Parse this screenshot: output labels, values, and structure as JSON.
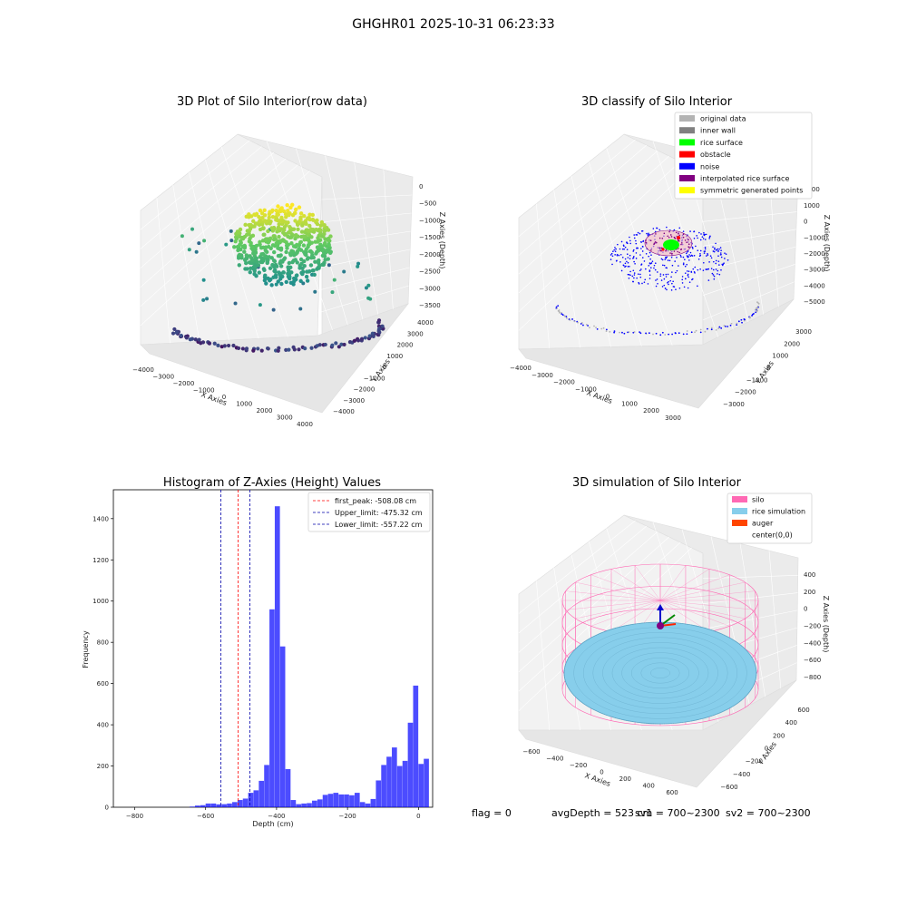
{
  "figure": {
    "suptitle": "GHGHR01 2025-10-31 06:23:33",
    "status": {
      "flag": "flag = 0",
      "avg_depth": "avgDepth = 523 cm",
      "sv1": "sv1 = 700~2300",
      "sv2": "sv2 = 700~2300"
    }
  },
  "chart_data": [
    {
      "type": "scatter",
      "title": "3D Plot of Silo Interior(row data)",
      "xlabel": "X Axies",
      "ylabel": "Y Axies",
      "zlabel": "Z Axies (Depth)",
      "x_ticks": [
        "−4000",
        "−3000",
        "−2000",
        "−1000",
        "0",
        "1000",
        "2000",
        "3000",
        "4000"
      ],
      "y_ticks": [
        "−4000",
        "−3000",
        "−2000",
        "−1000",
        "0",
        "1000",
        "2000",
        "3000",
        "4000"
      ],
      "z_ticks": [
        "0",
        "−500",
        "−1000",
        "−1500",
        "−2000",
        "−2500",
        "−3000",
        "−3500"
      ],
      "colormap": "viridis",
      "description_values": {
        "z_range": [
          -3700,
          0
        ],
        "xy_range": [
          -4000,
          4000
        ]
      }
    },
    {
      "type": "scatter",
      "title": "3D classify of Silo Interior",
      "xlabel": "X Axies",
      "ylabel": "Y Axies",
      "zlabel": "Z Axies (Depth)",
      "x_ticks": [
        "−4000",
        "−3000",
        "−2000",
        "−1000",
        "0",
        "1000",
        "2000",
        "3000"
      ],
      "y_ticks": [
        "−3000",
        "−2000",
        "−1000",
        "0",
        "1000",
        "2000",
        "3000"
      ],
      "z_ticks": [
        "1000",
        "0",
        "−1000",
        "−2000",
        "−3000",
        "−4000",
        "−5000"
      ],
      "z_hidden_tick": "2000",
      "legend": [
        {
          "name": "original data",
          "color": "#b3b3b3"
        },
        {
          "name": "inner wall",
          "color": "#808080"
        },
        {
          "name": "rice surface",
          "color": "#00ff00"
        },
        {
          "name": "obstacle",
          "color": "#ff0000"
        },
        {
          "name": "noise",
          "color": "#0000ff"
        },
        {
          "name": "interpolated rice surface",
          "color": "#800080"
        },
        {
          "name": "symmetric generated points",
          "color": "#ffff00"
        }
      ]
    },
    {
      "type": "bar",
      "title": "Histogram of Z-Axies (Height) Values",
      "xlabel": "Depth (cm)",
      "ylabel": "Frequency",
      "xlim": [
        -860,
        40
      ],
      "ylim": [
        0,
        1540
      ],
      "x_ticks": [
        -800,
        -600,
        -400,
        -200,
        0
      ],
      "y_ticks": [
        0,
        200,
        400,
        600,
        800,
        1000,
        1200,
        1400
      ],
      "bar_color": "#0000ff",
      "bin_width": 15,
      "bins": [
        {
          "x": -780,
          "value": 3
        },
        {
          "x": -765,
          "value": 8
        },
        {
          "x": -750,
          "value": 10
        },
        {
          "x": -735,
          "value": 18
        },
        {
          "x": -720,
          "value": 18
        },
        {
          "x": -705,
          "value": 14
        },
        {
          "x": -690,
          "value": 15
        },
        {
          "x": -675,
          "value": 18
        },
        {
          "x": -660,
          "value": 25
        },
        {
          "x": -645,
          "value": 35
        },
        {
          "x": -630,
          "value": 42
        },
        {
          "x": -615,
          "value": 70
        },
        {
          "x": -600,
          "value": 82
        },
        {
          "x": -585,
          "value": 128
        },
        {
          "x": -570,
          "value": 205
        },
        {
          "x": -555,
          "value": 960
        },
        {
          "x": -540,
          "value": 1460
        },
        {
          "x": -525,
          "value": 780
        },
        {
          "x": -510,
          "value": 185
        },
        {
          "x": -495,
          "value": 35
        },
        {
          "x": -480,
          "value": 15
        },
        {
          "x": -465,
          "value": 18
        },
        {
          "x": -450,
          "value": 20
        },
        {
          "x": -435,
          "value": 32
        },
        {
          "x": -420,
          "value": 38
        },
        {
          "x": -405,
          "value": 60
        },
        {
          "x": -390,
          "value": 65
        },
        {
          "x": -375,
          "value": 70
        },
        {
          "x": -360,
          "value": 62
        },
        {
          "x": -345,
          "value": 62
        },
        {
          "x": -330,
          "value": 58
        },
        {
          "x": -315,
          "value": 70
        },
        {
          "x": -300,
          "value": 25
        },
        {
          "x": -285,
          "value": 18
        },
        {
          "x": -270,
          "value": 40
        },
        {
          "x": -255,
          "value": 130
        },
        {
          "x": -240,
          "value": 205
        },
        {
          "x": -225,
          "value": 245
        },
        {
          "x": -210,
          "value": 290
        },
        {
          "x": -195,
          "value": 200
        },
        {
          "x": -180,
          "value": 225
        },
        {
          "x": -165,
          "value": 410
        },
        {
          "x": -150,
          "value": 590
        },
        {
          "x": -135,
          "value": 210
        },
        {
          "x": -120,
          "value": 235
        }
      ],
      "bin_offset": 135,
      "vlines": [
        {
          "label": "first_peak: -508.08 cm",
          "x": -508.08,
          "color": "#ff0000"
        },
        {
          "label": "Upper_limit: -475.32 cm",
          "x": -475.32,
          "color": "#0000aa"
        },
        {
          "label": "Lower_limit: -557.22 cm",
          "x": -557.22,
          "color": "#0000aa"
        }
      ],
      "legend_position": "top-right"
    },
    {
      "type": "scatter",
      "title": "3D simulation of Silo Interior",
      "xlabel": "X Axies",
      "ylabel": "Y Axies",
      "zlabel": "Z Axies (Depth)",
      "x_ticks": [
        "−600",
        "−400",
        "−200",
        "0",
        "200",
        "400",
        "600"
      ],
      "y_ticks": [
        "−600",
        "−400",
        "−200",
        "0",
        "200",
        "400",
        "600"
      ],
      "z_ticks": [
        "400",
        "200",
        "0",
        "−200",
        "−400",
        "−600",
        "−800"
      ],
      "legend": [
        {
          "name": "silo",
          "color": "#ff69b4"
        },
        {
          "name": "rice simulation",
          "color": "#87ceeb"
        },
        {
          "name": "auger",
          "color": "#ff4500"
        },
        {
          "name": "center(0,0)",
          "color": ""
        }
      ]
    }
  ]
}
